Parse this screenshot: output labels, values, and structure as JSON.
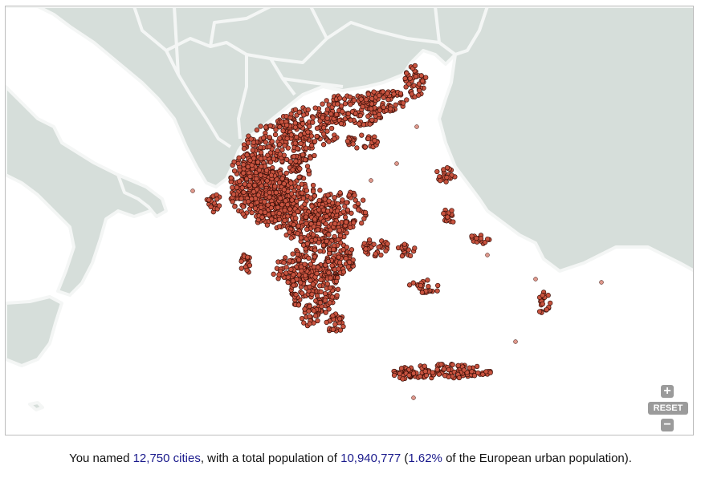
{
  "map": {
    "marker_fill": "#c8533f",
    "marker_stroke": "#3a0f08",
    "land_color": "#d6deda",
    "border_color": "#f4f6f5"
  },
  "controls": {
    "zoom_in_label": "+",
    "reset_label": "RESET",
    "zoom_out_label": "−"
  },
  "summary": {
    "prefix": "You named ",
    "cities": "12,750 cities",
    "middle": ", with a total population of ",
    "population": "10,940,777",
    "paren_open": " (",
    "percent": "1.62%",
    "suffix": " of the European urban population)."
  }
}
